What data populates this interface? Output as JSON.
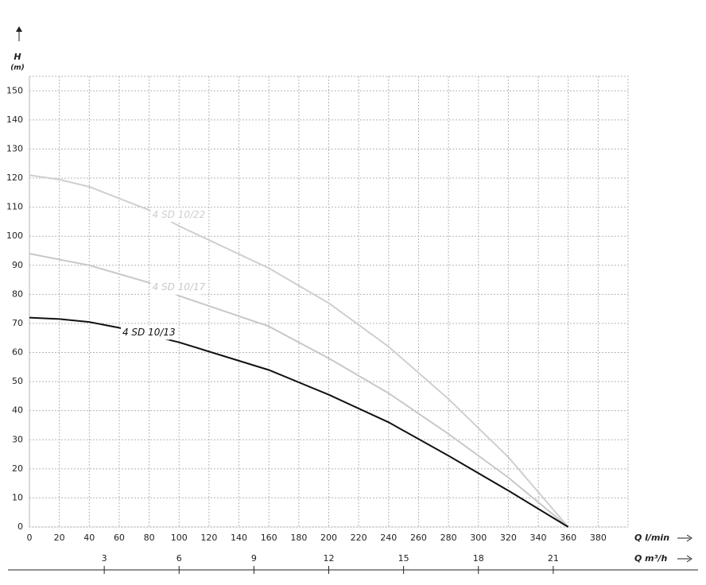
{
  "chart_data": {
    "type": "line",
    "y_label": "H",
    "y_unit": "(m)",
    "x_label": "Q l/min",
    "x2_label": "Q m³/h",
    "xlim": [
      0,
      400
    ],
    "xticks": [
      0,
      20,
      40,
      60,
      80,
      100,
      120,
      140,
      160,
      180,
      200,
      220,
      240,
      260,
      280,
      300,
      320,
      340,
      360,
      380
    ],
    "x2lim": [
      0,
      24
    ],
    "x2ticks": [
      3,
      6,
      9,
      12,
      15,
      18,
      21
    ],
    "ylim": [
      0,
      155
    ],
    "yticks": [
      0,
      10,
      20,
      30,
      40,
      50,
      60,
      70,
      80,
      90,
      100,
      110,
      120,
      130,
      140,
      150
    ],
    "grid": true,
    "series": [
      {
        "name": "4 SD 10/22",
        "color": "#cfcfcf",
        "x": [
          0,
          20,
          40,
          80,
          100,
          160,
          200,
          240,
          280,
          320,
          360
        ],
        "values": [
          121,
          119.5,
          117,
          109,
          103.5,
          89,
          77,
          62,
          44,
          24,
          0
        ]
      },
      {
        "name": "4 SD 10/17",
        "color": "#c8c8c8",
        "x": [
          0,
          20,
          40,
          80,
          100,
          160,
          200,
          240,
          280,
          320,
          360
        ],
        "values": [
          94,
          92,
          90,
          84,
          79.5,
          69,
          58,
          46,
          32,
          17,
          0
        ]
      },
      {
        "name": "4 SD 10/13",
        "color": "#111111",
        "x": [
          0,
          20,
          40,
          60,
          100,
          160,
          200,
          240,
          280,
          320,
          360
        ],
        "values": [
          72,
          71.5,
          70.5,
          68.5,
          63.5,
          54,
          45.5,
          36,
          24.5,
          12.5,
          0
        ]
      }
    ]
  }
}
